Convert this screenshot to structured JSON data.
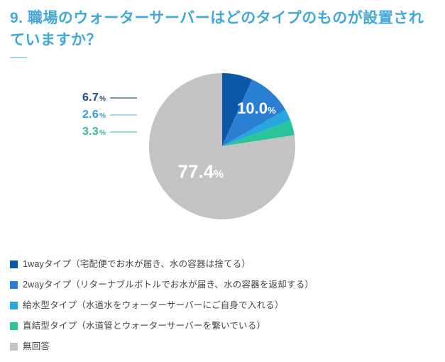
{
  "title": "9. 職場のウォーターサーバーはどのタイプのものが設置されていますか？",
  "colors": {
    "background": "#ffffff",
    "title_text": "#41a8d8",
    "title_divider": "#a9d4e2",
    "legend_text": "#444444"
  },
  "chart_data": {
    "type": "pie",
    "title": "9. 職場のウォーターサーバーはどのタイプのものが設置されていますか？",
    "unit": "%",
    "start_angle_deg": -90,
    "direction": "clockwise",
    "legend_position": "bottom-left",
    "inside_label_color": "#ffffff",
    "slices": [
      {
        "label": "1wayタイプ（宅配便でお水が届き、水の容器は捨てる）",
        "value": 6.7,
        "value_label": "6.7",
        "color": "#0d57a7",
        "label_placement": "outside-left",
        "callout_text_color": "#1b4a7e",
        "callout_line_color": "#8096b4"
      },
      {
        "label": "2wayタイプ（リターナブルボトルでお水が届き、水の容器を返却する）",
        "value": 10.0,
        "value_label": "10.0",
        "color": "#2a7fd2",
        "label_placement": "inside",
        "label_r_frac": 0.7,
        "label_font_px": 22
      },
      {
        "label": "給水型タイプ（水道水をウォーターサーバーにご自身で入れる）",
        "value": 2.6,
        "value_label": "2.6",
        "color": "#29a6de",
        "label_placement": "outside-left",
        "callout_text_color": "#2d9fd6",
        "callout_line_color": "#a9d6eb"
      },
      {
        "label": "直結型タイプ（水道管とウォーターサーバーを繋いでいる）",
        "value": 3.3,
        "value_label": "3.3",
        "color": "#2bc49a",
        "label_placement": "outside-left",
        "callout_text_color": "#33b794",
        "callout_line_color": "#a3dacf"
      },
      {
        "label": "無回答",
        "value": 77.4,
        "value_label": "77.4",
        "color": "#c3c3c4",
        "label_placement": "inside",
        "label_r_frac": 0.45,
        "label_font_px": 26
      }
    ]
  }
}
